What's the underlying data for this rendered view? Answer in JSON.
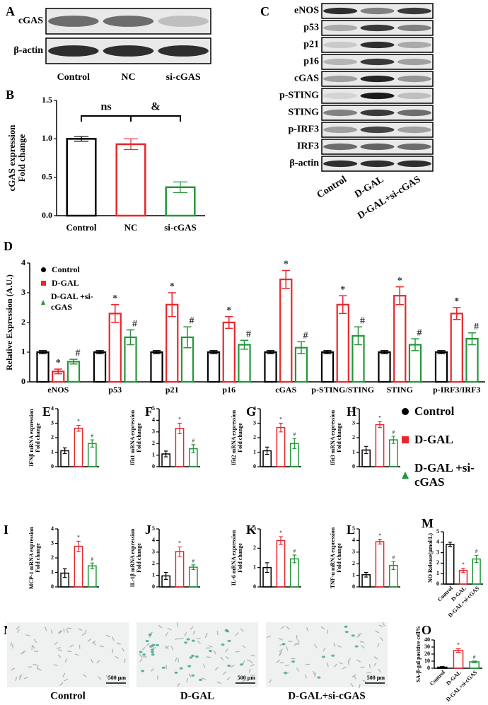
{
  "panel_labels": [
    "A",
    "B",
    "C",
    "D",
    "E",
    "F",
    "G",
    "H",
    "I",
    "J",
    "K",
    "L",
    "M",
    "N",
    "O"
  ],
  "blots": {
    "A": {
      "rows": [
        "cGAS",
        "β-actin"
      ],
      "lanes": [
        "Control",
        "NC",
        "si-cGAS"
      ]
    },
    "C": {
      "rows": [
        "eNOS",
        "p53",
        "p21",
        "p16",
        "cGAS",
        "p-STING",
        "STING",
        "p-IRF3",
        "IRF3",
        "β-actin"
      ],
      "lanes": [
        "Control",
        "D-GAL",
        "D-GAL+si-cGAS"
      ]
    }
  },
  "micrographs": {
    "labels": [
      "Control",
      "D-GAL",
      "D-GAL+si-cGAS"
    ],
    "scale_bar": "500 μm"
  },
  "shared_legend": [
    {
      "name": "Control",
      "color": "#000000",
      "marker": "circle"
    },
    {
      "name": "D-GAL",
      "color": "#e8262c",
      "marker": "square"
    },
    {
      "name": "D-GAL +si-cGAS",
      "color": "#24963a",
      "marker": "triangle"
    }
  ],
  "chart_data": [
    {
      "type": "bar",
      "ylabel": [
        "cGAS expression",
        "Fold change"
      ],
      "categories": [
        "Control",
        "NC",
        "si-cGAS"
      ],
      "values": [
        1.0,
        0.93,
        0.37
      ],
      "errors": [
        0.03,
        0.07,
        0.07
      ],
      "colors": [
        "#000000",
        "#e8262c",
        "#24963a"
      ],
      "annotations": [
        "ns",
        "&"
      ],
      "ylim": [
        0,
        1.5
      ],
      "yticks": [
        {
          "value": 0,
          "label": "0.0"
        },
        0.5,
        {
          "value": 1,
          "label": "1.0"
        },
        1.5
      ]
    },
    {
      "type": "grouped_bar",
      "ylabel": [
        "Relative Expression (A.U.)"
      ],
      "categories": [
        "eNOS",
        "p53",
        "p21",
        "p16",
        "cGAS",
        "p-STING/STING",
        "STING",
        "p-IRF3/IRF3"
      ],
      "series": [
        {
          "name": "Control",
          "color": "#000000",
          "marker": "circle",
          "values": [
            1,
            1,
            1,
            1,
            1,
            1,
            1,
            1
          ],
          "errors": [
            0.05,
            0.05,
            0.05,
            0.05,
            0.05,
            0.05,
            0.05,
            0.05
          ]
        },
        {
          "name": "D-GAL",
          "color": "#e8262c",
          "marker": "square",
          "bar_label": "*",
          "values": [
            0.35,
            2.3,
            2.6,
            2.0,
            3.45,
            2.6,
            2.9,
            2.3
          ],
          "errors": [
            0.08,
            0.3,
            0.4,
            0.2,
            0.3,
            0.3,
            0.3,
            0.2
          ]
        },
        {
          "name": "D-GAL +si-cGAS",
          "color": "#24963a",
          "marker": "triangle",
          "bar_label": "#",
          "values": [
            0.68,
            1.5,
            1.5,
            1.25,
            1.15,
            1.55,
            1.25,
            1.45
          ],
          "errors": [
            0.08,
            0.25,
            0.35,
            0.15,
            0.2,
            0.3,
            0.2,
            0.2
          ]
        }
      ],
      "ylim": [
        0,
        4
      ],
      "yticks": [
        0,
        1,
        2,
        3,
        4
      ]
    },
    {
      "type": "bar",
      "ylabel": [
        "IFNβ mRNA expression",
        "Fold change"
      ],
      "categories": [
        null,
        null,
        null
      ],
      "values": [
        1.1,
        2.65,
        1.6
      ],
      "errors": [
        0.2,
        0.2,
        0.25
      ],
      "colors": [
        "#000000",
        "#e8262c",
        "#24963a"
      ],
      "bar_labels": [
        null,
        "*",
        "#"
      ],
      "ylim": [
        0,
        4
      ],
      "yticks": [
        0,
        1,
        2,
        3,
        4
      ]
    },
    {
      "type": "bar",
      "ylabel": [
        "Ifit1 mRNA expression",
        "Fold change"
      ],
      "categories": [
        null,
        null,
        null
      ],
      "values": [
        1.1,
        3.3,
        1.55
      ],
      "errors": [
        0.25,
        0.45,
        0.35
      ],
      "colors": [
        "#000000",
        "#e8262c",
        "#24963a"
      ],
      "bar_labels": [
        null,
        "*",
        "#"
      ],
      "ylim": [
        0,
        5
      ],
      "yticks": [
        0,
        1,
        2,
        3,
        4,
        5
      ]
    },
    {
      "type": "bar",
      "ylabel": [
        "Ifit2 mRNA expression",
        "Fold change"
      ],
      "categories": [
        null,
        null,
        null
      ],
      "values": [
        1.1,
        2.7,
        1.6
      ],
      "errors": [
        0.25,
        0.3,
        0.35
      ],
      "colors": [
        "#000000",
        "#e8262c",
        "#24963a"
      ],
      "bar_labels": [
        null,
        "*",
        "#"
      ],
      "ylim": [
        0,
        4
      ],
      "yticks": [
        0,
        1,
        2,
        3,
        4
      ]
    },
    {
      "type": "bar",
      "ylabel": [
        "Ifit3 mRNA expression",
        "Fold change"
      ],
      "categories": [
        null,
        null,
        null
      ],
      "values": [
        1.15,
        2.9,
        1.85
      ],
      "errors": [
        0.25,
        0.2,
        0.25
      ],
      "colors": [
        "#000000",
        "#e8262c",
        "#24963a"
      ],
      "bar_labels": [
        null,
        "*",
        "#"
      ],
      "ylim": [
        0,
        4
      ],
      "yticks": [
        0,
        1,
        2,
        3,
        4
      ]
    },
    {
      "type": "bar",
      "ylabel": [
        "MCP-1 mRNA expression",
        "Fold change"
      ],
      "categories": [
        null,
        null,
        null
      ],
      "values": [
        0.95,
        2.8,
        1.45
      ],
      "errors": [
        0.3,
        0.35,
        0.2
      ],
      "colors": [
        "#000000",
        "#e8262c",
        "#24963a"
      ],
      "bar_labels": [
        null,
        "*",
        "#"
      ],
      "ylim": [
        0,
        4
      ],
      "yticks": [
        0,
        1,
        2,
        3,
        4
      ]
    },
    {
      "type": "bar",
      "ylabel": [
        "IL-1β mRNA expression",
        "Fold change"
      ],
      "categories": [
        null,
        null,
        null
      ],
      "values": [
        0.95,
        3.05,
        1.7
      ],
      "errors": [
        0.3,
        0.4,
        0.2
      ],
      "colors": [
        "#000000",
        "#e8262c",
        "#24963a"
      ],
      "bar_labels": [
        null,
        "*",
        "#"
      ],
      "ylim": [
        0,
        5
      ],
      "yticks": [
        0,
        1,
        2,
        3,
        4,
        5
      ]
    },
    {
      "type": "bar",
      "ylabel": [
        "IL-6 mRNA expression",
        "Fold change"
      ],
      "categories": [
        null,
        null,
        null
      ],
      "values": [
        1.0,
        2.4,
        1.45
      ],
      "errors": [
        0.25,
        0.2,
        0.2
      ],
      "colors": [
        "#000000",
        "#e8262c",
        "#24963a"
      ],
      "bar_labels": [
        null,
        "*",
        "#"
      ],
      "ylim": [
        0,
        3
      ],
      "yticks": [
        0,
        1,
        2,
        3
      ]
    },
    {
      "type": "bar",
      "ylabel": [
        "TNF-α mRNA expression",
        "Fold change"
      ],
      "categories": [
        null,
        null,
        null
      ],
      "values": [
        1.05,
        3.9,
        1.85
      ],
      "errors": [
        0.2,
        0.2,
        0.35
      ],
      "colors": [
        "#000000",
        "#e8262c",
        "#24963a"
      ],
      "bar_labels": [
        null,
        "*",
        "#"
      ],
      "ylim": [
        0,
        5
      ],
      "yticks": [
        0,
        1,
        2,
        3,
        4,
        5
      ]
    },
    {
      "type": "bar",
      "ylabel": [
        "NO Release(μmol/L)"
      ],
      "categories": [
        "Control",
        "D-GAL",
        "D-GAL+si-cGAS"
      ],
      "values": [
        3.8,
        1.3,
        2.4
      ],
      "errors": [
        0.2,
        0.2,
        0.35
      ],
      "colors": [
        "#000000",
        "#e8262c",
        "#24963a"
      ],
      "bar_labels": [
        null,
        "*",
        "#"
      ],
      "ylim": [
        0,
        5
      ],
      "yticks": [
        0,
        1,
        2,
        3,
        4,
        5
      ]
    },
    {
      "type": "bar",
      "ylabel": [
        "SA-β-gal positive cell%"
      ],
      "categories": [
        "Control",
        "D-GAL",
        "D-GAL+si-cGAS"
      ],
      "values": [
        1.5,
        25,
        9
      ],
      "errors": [
        0.8,
        2.5,
        1.2
      ],
      "colors": [
        "#000000",
        "#e8262c",
        "#24963a"
      ],
      "bar_labels": [
        null,
        "*",
        "#"
      ],
      "ylim": [
        0,
        40
      ],
      "yticks": [
        0,
        10,
        20,
        30,
        40
      ]
    }
  ]
}
